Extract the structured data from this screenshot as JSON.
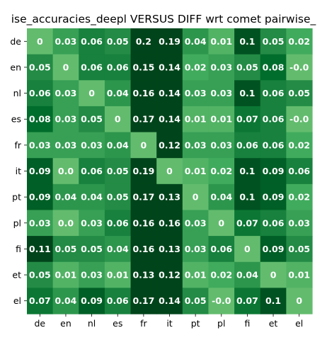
{
  "chart_data": {
    "type": "heatmap",
    "title": "ise_accuracies_deepl VERSUS DIFF wrt comet pairwise_",
    "x_labels": [
      "de",
      "en",
      "nl",
      "es",
      "fr",
      "it",
      "pt",
      "pl",
      "fi",
      "et",
      "el"
    ],
    "y_labels": [
      "de",
      "en",
      "nl",
      "es",
      "fr",
      "it",
      "pt",
      "pl",
      "fi",
      "et",
      "el"
    ],
    "cell_labels": [
      [
        "0",
        "0.03",
        "0.06",
        "0.05",
        "0.2",
        "0.19",
        "0.04",
        "0.01",
        "0.1",
        "0.05",
        "0.02"
      ],
      [
        "0.05",
        "0",
        "0.06",
        "0.06",
        "0.15",
        "0.14",
        "0.02",
        "0.03",
        "0.05",
        "0.08",
        "-0.0"
      ],
      [
        "0.06",
        "0.03",
        "0",
        "0.04",
        "0.16",
        "0.14",
        "0.03",
        "0.03",
        "0.1",
        "0.06",
        "0.05"
      ],
      [
        "0.08",
        "0.03",
        "0.05",
        "0",
        "0.17",
        "0.14",
        "0.01",
        "0.01",
        "0.07",
        "0.06",
        "-0.0"
      ],
      [
        "0.03",
        "0.03",
        "0.03",
        "0.04",
        "0",
        "0.12",
        "0.03",
        "0.03",
        "0.06",
        "0.06",
        "0.02"
      ],
      [
        "0.09",
        "0.0",
        "0.06",
        "0.05",
        "0.19",
        "0",
        "0.01",
        "0.02",
        "0.1",
        "0.09",
        "0.06"
      ],
      [
        "0.09",
        "0.04",
        "0.04",
        "0.05",
        "0.17",
        "0.13",
        "0",
        "0.04",
        "0.1",
        "0.09",
        "0.02"
      ],
      [
        "0.03",
        "0.0",
        "0.03",
        "0.06",
        "0.16",
        "0.16",
        "0.03",
        "0",
        "0.07",
        "0.06",
        "0.03"
      ],
      [
        "0.11",
        "0.05",
        "0.05",
        "0.04",
        "0.16",
        "0.13",
        "0.03",
        "0.06",
        "0",
        "0.09",
        "0.05"
      ],
      [
        "0.05",
        "0.01",
        "0.03",
        "0.01",
        "0.13",
        "0.12",
        "0.01",
        "0.02",
        "0.04",
        "0",
        "0.01"
      ],
      [
        "0.07",
        "0.04",
        "0.09",
        "0.06",
        "0.17",
        "0.14",
        "0.05",
        "-0.0",
        "0.07",
        "0.1",
        "0"
      ]
    ],
    "colormap": {
      "name": "Greens",
      "vmin": -0.01,
      "vmax": 0.11,
      "stops": [
        "#74c476",
        "#41ab5d",
        "#238b45",
        "#006d2c",
        "#00441b"
      ]
    },
    "grid": false
  }
}
